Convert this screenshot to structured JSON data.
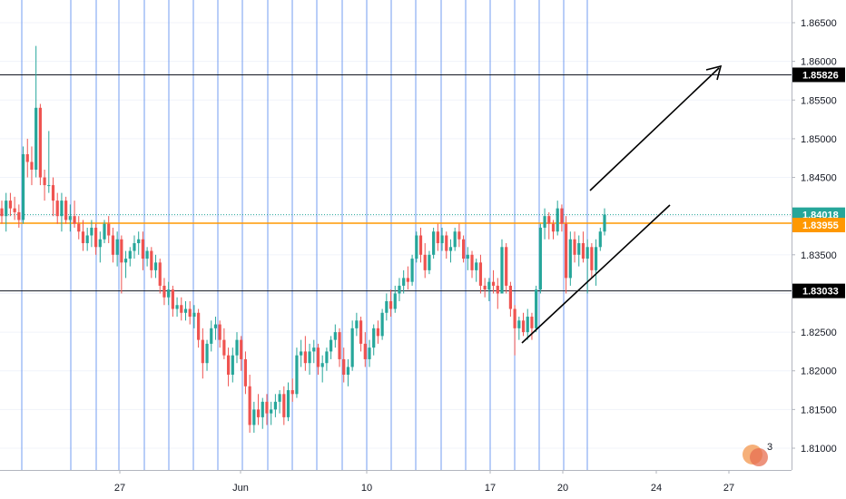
{
  "chart_data": {
    "type": "candlestick",
    "y_axis": {
      "ticks": [
        "1.86500",
        "1.86000",
        "1.85500",
        "1.85000",
        "1.84500",
        "1.84000",
        "1.83500",
        "1.83000",
        "1.82500",
        "1.82000",
        "1.81500",
        "1.81000"
      ],
      "ylim": [
        1.806,
        1.869
      ]
    },
    "x_axis": {
      "ticks": [
        "27",
        "Jun",
        "10",
        "17",
        "20",
        "24",
        "27"
      ]
    },
    "horizontal_lines": [
      {
        "value": 1.85826,
        "label": "1.85826",
        "color": "#131722"
      },
      {
        "value": 1.83033,
        "label": "1.83033",
        "color": "#131722"
      }
    ],
    "price_tags": [
      {
        "value": 1.84018,
        "label": "1.84018",
        "color": "#26a69a"
      },
      {
        "value": 1.83955,
        "label": "1.83955",
        "color": "#ff9800"
      }
    ],
    "ohlc": [
      [
        1.841,
        1.842,
        1.839,
        1.84
      ],
      [
        1.84,
        1.843,
        1.838,
        1.842
      ],
      [
        1.842,
        1.843,
        1.84,
        1.841
      ],
      [
        1.841,
        1.8425,
        1.8395,
        1.8405
      ],
      [
        1.8405,
        1.8415,
        1.8385,
        1.8395
      ],
      [
        1.8395,
        1.849,
        1.839,
        1.848
      ],
      [
        1.848,
        1.85,
        1.845,
        1.847
      ],
      [
        1.847,
        1.849,
        1.844,
        1.846
      ],
      [
        1.846,
        1.862,
        1.845,
        1.854
      ],
      [
        1.854,
        1.8545,
        1.844,
        1.845
      ],
      [
        1.845,
        1.846,
        1.842,
        1.844
      ],
      [
        1.844,
        1.851,
        1.843,
        1.844
      ],
      [
        1.844,
        1.845,
        1.84,
        1.842
      ],
      [
        1.842,
        1.843,
        1.839,
        1.84
      ],
      [
        1.84,
        1.843,
        1.838,
        1.842
      ],
      [
        1.842,
        1.8425,
        1.839,
        1.8395
      ],
      [
        1.8395,
        1.8415,
        1.838,
        1.84
      ],
      [
        1.84,
        1.842,
        1.8385,
        1.839
      ],
      [
        1.839,
        1.84,
        1.837,
        1.838
      ],
      [
        1.838,
        1.8395,
        1.8355,
        1.8365
      ],
      [
        1.8365,
        1.8385,
        1.8355,
        1.8375
      ],
      [
        1.8375,
        1.8395,
        1.836,
        1.8385
      ],
      [
        1.8385,
        1.839,
        1.835,
        1.836
      ],
      [
        1.836,
        1.838,
        1.834,
        1.837
      ],
      [
        1.837,
        1.8395,
        1.8365,
        1.839
      ],
      [
        1.839,
        1.84,
        1.8365,
        1.8375
      ],
      [
        1.8375,
        1.8385,
        1.834,
        1.835
      ],
      [
        1.835,
        1.838,
        1.8335,
        1.837
      ],
      [
        1.837,
        1.8375,
        1.83,
        1.834
      ],
      [
        1.834,
        1.8355,
        1.832,
        1.8345
      ],
      [
        1.8345,
        1.836,
        1.8335,
        1.8355
      ],
      [
        1.8355,
        1.8375,
        1.8345,
        1.8365
      ],
      [
        1.8365,
        1.838,
        1.835,
        1.837
      ],
      [
        1.837,
        1.838,
        1.833,
        1.8345
      ],
      [
        1.8345,
        1.836,
        1.8335,
        1.8355
      ],
      [
        1.8355,
        1.836,
        1.832,
        1.833
      ],
      [
        1.833,
        1.835,
        1.832,
        1.834
      ],
      [
        1.834,
        1.8345,
        1.83,
        1.831
      ],
      [
        1.831,
        1.832,
        1.8285,
        1.8295
      ],
      [
        1.8295,
        1.8315,
        1.8285,
        1.8305
      ],
      [
        1.8305,
        1.831,
        1.827,
        1.828
      ],
      [
        1.828,
        1.8295,
        1.827,
        1.8285
      ],
      [
        1.8285,
        1.8295,
        1.8265,
        1.8275
      ],
      [
        1.8275,
        1.829,
        1.8265,
        1.828
      ],
      [
        1.828,
        1.829,
        1.826,
        1.827
      ],
      [
        1.827,
        1.8285,
        1.8255,
        1.8275
      ],
      [
        1.8275,
        1.828,
        1.823,
        1.824
      ],
      [
        1.824,
        1.8255,
        1.819,
        1.821
      ],
      [
        1.821,
        1.824,
        1.82,
        1.8235
      ],
      [
        1.8235,
        1.8265,
        1.8225,
        1.8255
      ],
      [
        1.8255,
        1.827,
        1.824,
        1.826
      ],
      [
        1.826,
        1.8265,
        1.823,
        1.824
      ],
      [
        1.824,
        1.8255,
        1.8215,
        1.822
      ],
      [
        1.822,
        1.823,
        1.818,
        1.8195
      ],
      [
        1.8195,
        1.823,
        1.8185,
        1.822
      ],
      [
        1.822,
        1.825,
        1.821,
        1.824
      ],
      [
        1.824,
        1.8245,
        1.82,
        1.8215
      ],
      [
        1.8215,
        1.8225,
        1.817,
        1.818
      ],
      [
        1.818,
        1.8195,
        1.812,
        1.813
      ],
      [
        1.813,
        1.816,
        1.812,
        1.815
      ],
      [
        1.815,
        1.817,
        1.813,
        1.814
      ],
      [
        1.814,
        1.8165,
        1.8125,
        1.816
      ],
      [
        1.816,
        1.817,
        1.813,
        1.8145
      ],
      [
        1.8145,
        1.816,
        1.813,
        1.815
      ],
      [
        1.815,
        1.817,
        1.814,
        1.816
      ],
      [
        1.816,
        1.8175,
        1.8145,
        1.817
      ],
      [
        1.817,
        1.818,
        1.813,
        1.814
      ],
      [
        1.814,
        1.8185,
        1.8135,
        1.8175
      ],
      [
        1.8175,
        1.819,
        1.816,
        1.817
      ],
      [
        1.817,
        1.823,
        1.8165,
        1.822
      ],
      [
        1.822,
        1.824,
        1.8205,
        1.8225
      ],
      [
        1.8225,
        1.8245,
        1.82,
        1.821
      ],
      [
        1.821,
        1.8235,
        1.8195,
        1.8225
      ],
      [
        1.8225,
        1.824,
        1.821,
        1.823
      ],
      [
        1.823,
        1.8235,
        1.8195,
        1.8205
      ],
      [
        1.8205,
        1.822,
        1.8185,
        1.821
      ],
      [
        1.821,
        1.823,
        1.82,
        1.8225
      ],
      [
        1.8225,
        1.8245,
        1.8215,
        1.824
      ],
      [
        1.824,
        1.826,
        1.823,
        1.825
      ],
      [
        1.825,
        1.8255,
        1.8205,
        1.8215
      ],
      [
        1.8215,
        1.823,
        1.8185,
        1.8195
      ],
      [
        1.8195,
        1.8215,
        1.818,
        1.8205
      ],
      [
        1.8205,
        1.8265,
        1.82,
        1.8255
      ],
      [
        1.8255,
        1.8275,
        1.8245,
        1.8265
      ],
      [
        1.8265,
        1.827,
        1.8225,
        1.8235
      ],
      [
        1.8235,
        1.825,
        1.8205,
        1.8215
      ],
      [
        1.8215,
        1.824,
        1.8205,
        1.823
      ],
      [
        1.823,
        1.826,
        1.822,
        1.8255
      ],
      [
        1.8255,
        1.8265,
        1.8235,
        1.8245
      ],
      [
        1.8245,
        1.828,
        1.824,
        1.8275
      ],
      [
        1.8275,
        1.83,
        1.8265,
        1.829
      ],
      [
        1.829,
        1.8305,
        1.827,
        1.828
      ],
      [
        1.828,
        1.831,
        1.8275,
        1.83
      ],
      [
        1.83,
        1.832,
        1.829,
        1.831
      ],
      [
        1.831,
        1.833,
        1.83,
        1.832
      ],
      [
        1.832,
        1.8335,
        1.8305,
        1.8315
      ],
      [
        1.8315,
        1.835,
        1.831,
        1.8345
      ],
      [
        1.8345,
        1.838,
        1.834,
        1.8375
      ],
      [
        1.8375,
        1.8385,
        1.834,
        1.835
      ],
      [
        1.835,
        1.8365,
        1.832,
        1.833
      ],
      [
        1.833,
        1.8355,
        1.8325,
        1.835
      ],
      [
        1.835,
        1.8385,
        1.8345,
        1.838
      ],
      [
        1.838,
        1.839,
        1.8355,
        1.8365
      ],
      [
        1.8365,
        1.8385,
        1.8355,
        1.8375
      ],
      [
        1.8375,
        1.838,
        1.8345,
        1.8355
      ],
      [
        1.8355,
        1.837,
        1.834,
        1.836
      ],
      [
        1.836,
        1.8385,
        1.8355,
        1.838
      ],
      [
        1.838,
        1.839,
        1.836,
        1.837
      ],
      [
        1.837,
        1.8375,
        1.834,
        1.8345
      ],
      [
        1.8345,
        1.836,
        1.833,
        1.835
      ],
      [
        1.835,
        1.8355,
        1.832,
        1.833
      ],
      [
        1.833,
        1.8345,
        1.8315,
        1.834
      ],
      [
        1.834,
        1.835,
        1.83,
        1.831
      ],
      [
        1.831,
        1.832,
        1.8295,
        1.8305
      ],
      [
        1.8305,
        1.832,
        1.829,
        1.8315
      ],
      [
        1.8315,
        1.833,
        1.83,
        1.831
      ],
      [
        1.831,
        1.832,
        1.828,
        1.83
      ],
      [
        1.83,
        1.837,
        1.83,
        1.836
      ],
      [
        1.836,
        1.8365,
        1.83,
        1.831
      ],
      [
        1.831,
        1.8315,
        1.827,
        1.828
      ],
      [
        1.828,
        1.8285,
        1.822,
        1.8255
      ],
      [
        1.8255,
        1.827,
        1.824,
        1.8265
      ],
      [
        1.8265,
        1.8275,
        1.8245,
        1.825
      ],
      [
        1.825,
        1.828,
        1.824,
        1.827
      ],
      [
        1.827,
        1.8275,
        1.824,
        1.8255
      ],
      [
        1.8255,
        1.831,
        1.825,
        1.8305
      ],
      [
        1.8305,
        1.839,
        1.83,
        1.8385
      ],
      [
        1.8385,
        1.841,
        1.837,
        1.84
      ],
      [
        1.84,
        1.8405,
        1.837,
        1.839
      ],
      [
        1.839,
        1.8395,
        1.837,
        1.838
      ],
      [
        1.838,
        1.842,
        1.8375,
        1.841
      ],
      [
        1.841,
        1.8415,
        1.838,
        1.839
      ],
      [
        1.839,
        1.84,
        1.83,
        1.832
      ],
      [
        1.832,
        1.838,
        1.831,
        1.837
      ],
      [
        1.837,
        1.838,
        1.834,
        1.835
      ],
      [
        1.835,
        1.8375,
        1.8335,
        1.8365
      ],
      [
        1.8365,
        1.838,
        1.834,
        1.8345
      ],
      [
        1.8345,
        1.837,
        1.83,
        1.836
      ],
      [
        1.836,
        1.8365,
        1.832,
        1.833
      ],
      [
        1.833,
        1.837,
        1.831,
        1.836
      ],
      [
        1.836,
        1.8385,
        1.8355,
        1.838
      ],
      [
        1.838,
        1.841,
        1.8375,
        1.8402
      ]
    ],
    "annotations": [
      "arrow toward 1.85826",
      "ascending trend line",
      "3"
    ]
  },
  "colors": {
    "up": "#26a69a",
    "down": "#ef5350",
    "vline": "#5b8def",
    "grid": "#f0f3fa",
    "hline": "#131722",
    "axis_line": "#b2b5be"
  }
}
